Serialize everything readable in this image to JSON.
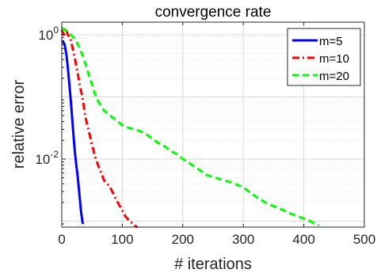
{
  "chart_data": {
    "type": "line",
    "title": "convergence rate",
    "xlabel": "# iterations",
    "ylabel": "relative error",
    "xlim": [
      0,
      500
    ],
    "ylim": [
      0.0008,
      1.6
    ],
    "yscale": "log",
    "grid": true,
    "legend": "top-right",
    "xticks": [
      0,
      100,
      200,
      300,
      400,
      500
    ],
    "xtick_labels": [
      "0",
      "100",
      "200",
      "300",
      "400",
      "500"
    ],
    "yticks": [
      1,
      0.01
    ],
    "ytick_labels": [
      {
        "base": "10",
        "exp": "0"
      },
      {
        "base": "10",
        "exp": "-2"
      }
    ],
    "series": [
      {
        "name": "m=5",
        "color": "#0000ff",
        "style": "solid",
        "x": [
          0,
          2,
          4,
          6,
          8,
          10,
          12,
          14,
          16,
          18,
          20,
          22,
          24,
          26,
          28,
          30,
          32,
          34,
          35
        ],
        "y": [
          0.8,
          0.78,
          0.72,
          0.6,
          0.45,
          0.3,
          0.18,
          0.11,
          0.065,
          0.035,
          0.02,
          0.012,
          0.008,
          0.0055,
          0.0035,
          0.0022,
          0.0014,
          0.001,
          0.0009
        ]
      },
      {
        "name": "m=10",
        "color": "#ff0000",
        "style": "dashdot",
        "x": [
          0,
          3,
          6,
          10,
          14,
          18,
          22,
          26,
          30,
          34,
          38,
          42,
          46,
          50,
          55,
          60,
          65,
          70,
          75,
          80,
          85,
          90,
          95,
          100,
          105,
          110,
          115,
          120,
          125
        ],
        "y": [
          1.2,
          1.0,
          1.3,
          1.0,
          0.9,
          0.6,
          0.4,
          0.25,
          0.15,
          0.1,
          0.055,
          0.035,
          0.025,
          0.017,
          0.011,
          0.008,
          0.006,
          0.0045,
          0.004,
          0.0035,
          0.0028,
          0.0022,
          0.0018,
          0.0015,
          0.0012,
          0.00105,
          0.00095,
          0.00085,
          0.0008
        ]
      },
      {
        "name": "m=20",
        "color": "#00ff00",
        "style": "dashed",
        "x": [
          0,
          5,
          10,
          15,
          20,
          25,
          30,
          35,
          40,
          45,
          50,
          55,
          60,
          70,
          80,
          90,
          100,
          110,
          120,
          130,
          140,
          150,
          160,
          170,
          180,
          190,
          200,
          220,
          240,
          260,
          280,
          300,
          320,
          340,
          360,
          380,
          400,
          410,
          420,
          425
        ],
        "y": [
          1.3,
          1.2,
          1.1,
          1.0,
          0.9,
          0.75,
          0.6,
          0.45,
          0.32,
          0.22,
          0.16,
          0.11,
          0.085,
          0.06,
          0.05,
          0.042,
          0.035,
          0.032,
          0.03,
          0.028,
          0.025,
          0.021,
          0.018,
          0.016,
          0.0135,
          0.012,
          0.01,
          0.0075,
          0.0055,
          0.0048,
          0.0042,
          0.0035,
          0.0025,
          0.0019,
          0.0016,
          0.0013,
          0.0011,
          0.001,
          0.0009,
          0.00085
        ]
      }
    ]
  }
}
